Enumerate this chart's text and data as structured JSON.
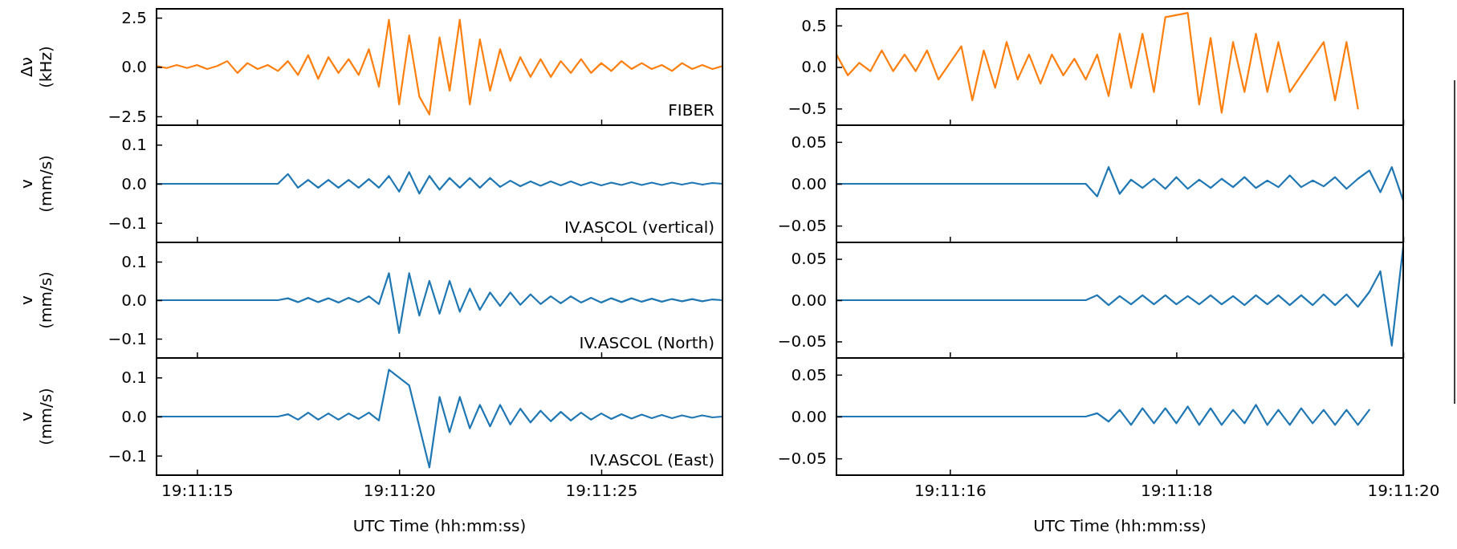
{
  "chart_data": [
    {
      "type": "line",
      "ylabel": "Δν (kHz)",
      "annotations": [
        "FIBER"
      ],
      "tick_labels": "y",
      "grid": false,
      "xlim": [
        19.187222,
        19.191111
      ],
      "xticks": [
        {
          "value": 19.1875,
          "label": null
        },
        {
          "value": 19.188889,
          "label": null
        },
        {
          "value": 19.190278,
          "label": null
        }
      ],
      "ylim": [
        -2.95,
        2.95
      ],
      "yticks": [
        {
          "value": 2.5,
          "label": "2.5"
        },
        {
          "value": 0,
          "label": "0.0"
        },
        {
          "value": -2.5,
          "label": "−2.5"
        }
      ],
      "x": [
        19.187222,
        19.187292,
        19.187361,
        19.187431,
        19.1875,
        19.187569,
        19.187639,
        19.187708,
        19.187778,
        19.187847,
        19.187917,
        19.187986,
        19.188056,
        19.188125,
        19.188194,
        19.188264,
        19.188333,
        19.188403,
        19.188472,
        19.188542,
        19.188611,
        19.188681,
        19.18875,
        19.188819,
        19.188889,
        19.188958,
        19.189028,
        19.189097,
        19.189167,
        19.189236,
        19.189306,
        19.189375,
        19.189444,
        19.189514,
        19.189583,
        19.189653,
        19.189722,
        19.189792,
        19.189861,
        19.189931,
        19.19,
        19.190069,
        19.190139,
        19.190208,
        19.190278,
        19.190347,
        19.190417,
        19.190486,
        19.190556,
        19.190625,
        19.190694,
        19.190764,
        19.190833,
        19.190903,
        19.190972,
        19.191042,
        19.191111
      ],
      "series": [
        {
          "color": "#ff7f0e",
          "values": [
            0.05,
            -0.05,
            0.1,
            -0.05,
            0.1,
            -0.1,
            0.05,
            0.3,
            -0.3,
            0.2,
            -0.1,
            0.1,
            -0.2,
            0.3,
            -0.4,
            0.6,
            -0.6,
            0.5,
            -0.3,
            0.4,
            -0.4,
            0.9,
            -1.0,
            2.4,
            -1.9,
            1.6,
            -1.5,
            -2.4,
            1.5,
            -1.2,
            2.4,
            -1.9,
            1.4,
            -1.2,
            0.9,
            -0.7,
            0.5,
            -0.5,
            0.4,
            -0.5,
            0.3,
            -0.3,
            0.4,
            -0.3,
            0.2,
            -0.2,
            0.3,
            -0.1,
            0.2,
            -0.1,
            0.1,
            -0.2,
            0.2,
            -0.1,
            0.1,
            -0.1,
            0.05
          ]
        }
      ]
    },
    {
      "type": "line",
      "tick_labels": "y",
      "grid": false,
      "xlim": [
        19.1875,
        19.188889
      ],
      "xticks": [
        {
          "value": 19.187778,
          "label": null
        },
        {
          "value": 19.188333,
          "label": null
        },
        {
          "value": 19.188889,
          "label": null
        }
      ],
      "ylim": [
        -0.7,
        0.7
      ],
      "yticks": [
        {
          "value": 0.5,
          "label": "0.5"
        },
        {
          "value": 0,
          "label": "0.0"
        },
        {
          "value": -0.5,
          "label": "−0.5"
        }
      ],
      "x": [
        19.1875,
        19.187528,
        19.187556,
        19.187583,
        19.187611,
        19.187639,
        19.187667,
        19.187694,
        19.187722,
        19.18775,
        19.187778,
        19.187806,
        19.187833,
        19.187861,
        19.187889,
        19.187917,
        19.187944,
        19.187972,
        19.188,
        19.188028,
        19.188056,
        19.188083,
        19.188111,
        19.188139,
        19.188167,
        19.188194,
        19.188222,
        19.18825,
        19.188278,
        19.188306,
        19.188361,
        19.188389,
        19.188417,
        19.188444,
        19.188472,
        19.1885,
        19.188528,
        19.188556,
        19.188583,
        19.188611,
        19.188694,
        19.188722,
        19.18875,
        19.188778
      ],
      "series": [
        {
          "color": "#ff7f0e",
          "values": [
            0.15,
            -0.1,
            0.05,
            -0.05,
            0.2,
            -0.05,
            0.15,
            -0.05,
            0.2,
            -0.15,
            0.05,
            0.25,
            -0.4,
            0.2,
            -0.25,
            0.3,
            -0.15,
            0.15,
            -0.2,
            0.15,
            -0.1,
            0.1,
            -0.15,
            0.15,
            -0.35,
            0.4,
            -0.25,
            0.4,
            -0.3,
            0.6,
            0.65,
            -0.45,
            0.35,
            -0.55,
            0.3,
            -0.3,
            0.4,
            -0.3,
            0.3,
            -0.3,
            0.3,
            -0.4,
            0.3,
            -0.5
          ]
        }
      ]
    },
    {
      "type": "line",
      "ylabel": "v (mm/s)",
      "annotations": [
        "IV.ASCOL (vertical)"
      ],
      "tick_labels": "y",
      "grid": false,
      "xlim": [
        19.187222,
        19.191111
      ],
      "xticks": [
        {
          "value": 19.1875,
          "label": null
        },
        {
          "value": 19.188889,
          "label": null
        },
        {
          "value": 19.190278,
          "label": null
        }
      ],
      "ylim": [
        -0.15,
        0.15
      ],
      "yticks": [
        {
          "value": 0.1,
          "label": "0.1"
        },
        {
          "value": 0,
          "label": "0.0"
        },
        {
          "value": -0.1,
          "label": "−0.1"
        }
      ],
      "x": [
        19.187222,
        19.187292,
        19.187361,
        19.187431,
        19.1875,
        19.187569,
        19.187639,
        19.187708,
        19.187778,
        19.187847,
        19.187917,
        19.187986,
        19.188056,
        19.188125,
        19.188194,
        19.188264,
        19.188333,
        19.188403,
        19.188472,
        19.188542,
        19.188611,
        19.188681,
        19.18875,
        19.188819,
        19.188889,
        19.188958,
        19.189028,
        19.189097,
        19.189167,
        19.189236,
        19.189306,
        19.189375,
        19.189444,
        19.189514,
        19.189583,
        19.189653,
        19.189722,
        19.189792,
        19.189861,
        19.189931,
        19.19,
        19.190069,
        19.190139,
        19.190208,
        19.190278,
        19.190347,
        19.190417,
        19.190486,
        19.190556,
        19.190625,
        19.190694,
        19.190764,
        19.190833,
        19.190903,
        19.190972,
        19.191042,
        19.191111
      ],
      "series": [
        {
          "color": "#1f77b4",
          "values": [
            0,
            0,
            0,
            0,
            0,
            0,
            0,
            0,
            0,
            0,
            0,
            0,
            0,
            0.025,
            -0.01,
            0.01,
            -0.01,
            0.01,
            -0.01,
            0.01,
            -0.01,
            0.012,
            -0.01,
            0.02,
            -0.02,
            0.03,
            -0.025,
            0.02,
            -0.015,
            0.015,
            -0.01,
            0.015,
            -0.01,
            0.015,
            -0.008,
            0.008,
            -0.006,
            0.006,
            -0.005,
            0.006,
            -0.004,
            0.006,
            -0.004,
            0.004,
            -0.004,
            0.003,
            -0.003,
            0.004,
            -0.003,
            0.003,
            -0.003,
            0.003,
            -0.002,
            0.003,
            -0.002,
            0.002,
            0
          ]
        }
      ]
    },
    {
      "type": "line",
      "tick_labels": "y",
      "grid": false,
      "xlim": [
        19.1875,
        19.188889
      ],
      "xticks": [
        {
          "value": 19.187778,
          "label": null
        },
        {
          "value": 19.188333,
          "label": null
        },
        {
          "value": 19.188889,
          "label": null
        }
      ],
      "ylim": [
        -0.07,
        0.07
      ],
      "yticks": [
        {
          "value": 0.05,
          "label": "0.05"
        },
        {
          "value": 0,
          "label": "0.00"
        },
        {
          "value": -0.05,
          "label": "−0.05"
        }
      ],
      "x": [
        19.1875,
        19.187528,
        19.187556,
        19.187583,
        19.187611,
        19.187639,
        19.187667,
        19.187694,
        19.187722,
        19.18775,
        19.187778,
        19.187806,
        19.187833,
        19.187861,
        19.187889,
        19.187917,
        19.187944,
        19.187972,
        19.188,
        19.188028,
        19.188056,
        19.188083,
        19.188111,
        19.188139,
        19.188167,
        19.188194,
        19.188222,
        19.18825,
        19.188278,
        19.188306,
        19.188333,
        19.188361,
        19.188389,
        19.188417,
        19.188444,
        19.188472,
        19.1885,
        19.188528,
        19.188556,
        19.188583,
        19.188611,
        19.188639,
        19.188667,
        19.188694,
        19.188722,
        19.18875,
        19.188778,
        19.188806,
        19.188833,
        19.188861,
        19.188889
      ],
      "series": [
        {
          "color": "#1f77b4",
          "values": [
            0,
            0,
            0,
            0,
            0,
            0,
            0,
            0,
            0,
            0,
            0,
            0,
            0,
            0,
            0,
            0,
            0,
            0,
            0,
            0,
            0,
            0,
            0,
            -0.015,
            0.02,
            -0.012,
            0.005,
            -0.005,
            0.006,
            -0.006,
            0.008,
            -0.006,
            0.005,
            -0.005,
            0.006,
            -0.004,
            0.008,
            -0.005,
            0.004,
            -0.004,
            0.01,
            -0.004,
            0.004,
            -0.003,
            0.008,
            -0.006,
            0.006,
            0.016,
            -0.01,
            0.02,
            -0.02
          ]
        }
      ]
    },
    {
      "type": "line",
      "ylabel": "v (mm/s)",
      "annotations": [
        "IV.ASCOL (North)"
      ],
      "tick_labels": "y",
      "grid": false,
      "xlim": [
        19.187222,
        19.191111
      ],
      "xticks": [
        {
          "value": 19.1875,
          "label": null
        },
        {
          "value": 19.188889,
          "label": null
        },
        {
          "value": 19.190278,
          "label": null
        }
      ],
      "ylim": [
        -0.15,
        0.15
      ],
      "yticks": [
        {
          "value": 0.1,
          "label": "0.1"
        },
        {
          "value": 0,
          "label": "0.0"
        },
        {
          "value": -0.1,
          "label": "−0.1"
        }
      ],
      "x": [
        19.187222,
        19.187292,
        19.187361,
        19.187431,
        19.1875,
        19.187569,
        19.187639,
        19.187708,
        19.187778,
        19.187847,
        19.187917,
        19.187986,
        19.188056,
        19.188125,
        19.188194,
        19.188264,
        19.188333,
        19.188403,
        19.188472,
        19.188542,
        19.188611,
        19.188681,
        19.18875,
        19.188819,
        19.188889,
        19.188958,
        19.189028,
        19.189097,
        19.189167,
        19.189236,
        19.189306,
        19.189375,
        19.189444,
        19.189514,
        19.189583,
        19.189653,
        19.189722,
        19.189792,
        19.189861,
        19.189931,
        19.19,
        19.190069,
        19.190139,
        19.190208,
        19.190278,
        19.190347,
        19.190417,
        19.190486,
        19.190556,
        19.190625,
        19.190694,
        19.190764,
        19.190833,
        19.190903,
        19.190972,
        19.191042,
        19.191111
      ],
      "series": [
        {
          "color": "#1f77b4",
          "values": [
            0,
            0,
            0,
            0,
            0,
            0,
            0,
            0,
            0,
            0,
            0,
            0,
            0,
            0.005,
            -0.005,
            0.006,
            -0.005,
            0.005,
            -0.006,
            0.006,
            -0.005,
            0.01,
            -0.01,
            0.07,
            -0.085,
            0.07,
            -0.04,
            0.05,
            -0.035,
            0.05,
            -0.03,
            0.03,
            -0.025,
            0.02,
            -0.015,
            0.02,
            -0.012,
            0.015,
            -0.01,
            0.01,
            -0.008,
            0.01,
            -0.006,
            0.006,
            -0.006,
            0.005,
            -0.005,
            0.005,
            -0.004,
            0.004,
            -0.004,
            0.003,
            -0.003,
            0.003,
            -0.003,
            0.002,
            0
          ]
        }
      ]
    },
    {
      "type": "line",
      "tick_labels": "y",
      "grid": false,
      "xlim": [
        19.1875,
        19.188889
      ],
      "xticks": [
        {
          "value": 19.187778,
          "label": null
        },
        {
          "value": 19.188333,
          "label": null
        },
        {
          "value": 19.188889,
          "label": null
        }
      ],
      "ylim": [
        -0.07,
        0.07
      ],
      "yticks": [
        {
          "value": 0.05,
          "label": "0.05"
        },
        {
          "value": 0,
          "label": "0.00"
        },
        {
          "value": -0.05,
          "label": "−0.05"
        }
      ],
      "x": [
        19.1875,
        19.187528,
        19.187556,
        19.187583,
        19.187611,
        19.187639,
        19.187667,
        19.187694,
        19.187722,
        19.18775,
        19.187778,
        19.187806,
        19.187833,
        19.187861,
        19.187889,
        19.187917,
        19.187944,
        19.187972,
        19.188,
        19.188028,
        19.188056,
        19.188083,
        19.188111,
        19.188139,
        19.188167,
        19.188194,
        19.188222,
        19.18825,
        19.188278,
        19.188306,
        19.188333,
        19.188361,
        19.188389,
        19.188417,
        19.188444,
        19.188472,
        19.1885,
        19.188528,
        19.188556,
        19.188583,
        19.188611,
        19.188639,
        19.188667,
        19.188694,
        19.188722,
        19.18875,
        19.188778,
        19.188806,
        19.188833,
        19.188861,
        19.188889
      ],
      "series": [
        {
          "color": "#1f77b4",
          "values": [
            0,
            0,
            0,
            0,
            0,
            0,
            0,
            0,
            0,
            0,
            0,
            0,
            0,
            0,
            0,
            0,
            0,
            0,
            0,
            0,
            0,
            0,
            0,
            0.006,
            -0.006,
            0.005,
            -0.005,
            0.006,
            -0.005,
            0.006,
            -0.005,
            0.005,
            -0.005,
            0.006,
            -0.005,
            0.005,
            -0.006,
            0.006,
            -0.005,
            0.006,
            -0.006,
            0.006,
            -0.006,
            0.007,
            -0.006,
            0.007,
            -0.008,
            0.01,
            0.035,
            -0.055,
            0.065
          ]
        }
      ]
    },
    {
      "type": "line",
      "ylabel": "v (mm/s)",
      "xlabel": "UTC Time (hh:mm:ss)",
      "annotations": [
        "IV.ASCOL (East)"
      ],
      "grid": false,
      "xlim": [
        19.187222,
        19.191111
      ],
      "xticks": [
        {
          "value": 19.1875,
          "label": "19:11:15"
        },
        {
          "value": 19.188889,
          "label": "19:11:20"
        },
        {
          "value": 19.190278,
          "label": "19:11:25"
        }
      ],
      "ylim": [
        -0.15,
        0.15
      ],
      "yticks": [
        {
          "value": 0.1,
          "label": "0.1"
        },
        {
          "value": 0,
          "label": "0.0"
        },
        {
          "value": -0.1,
          "label": "−0.1"
        }
      ],
      "x": [
        19.187222,
        19.187292,
        19.187361,
        19.187431,
        19.1875,
        19.187569,
        19.187639,
        19.187708,
        19.187778,
        19.187847,
        19.187917,
        19.187986,
        19.188056,
        19.188125,
        19.188194,
        19.188264,
        19.188333,
        19.188403,
        19.188472,
        19.188542,
        19.188611,
        19.188681,
        19.18875,
        19.188819,
        19.188958,
        19.189097,
        19.189167,
        19.189236,
        19.189306,
        19.189375,
        19.189444,
        19.189514,
        19.189583,
        19.189653,
        19.189722,
        19.189792,
        19.189861,
        19.189931,
        19.19,
        19.190069,
        19.190139,
        19.190208,
        19.190278,
        19.190347,
        19.190417,
        19.190486,
        19.190556,
        19.190625,
        19.190694,
        19.190764,
        19.190833,
        19.190903,
        19.190972,
        19.191042,
        19.191111
      ],
      "series": [
        {
          "color": "#1f77b4",
          "values": [
            0,
            0,
            0,
            0,
            0,
            0,
            0,
            0,
            0,
            0,
            0,
            0,
            0,
            0.006,
            -0.008,
            0.01,
            -0.008,
            0.008,
            -0.008,
            0.008,
            -0.006,
            0.01,
            -0.01,
            0.12,
            0.08,
            -0.13,
            0.05,
            -0.04,
            0.05,
            -0.03,
            0.03,
            -0.025,
            0.03,
            -0.02,
            0.02,
            -0.015,
            0.015,
            -0.012,
            0.012,
            -0.01,
            0.01,
            -0.008,
            0.008,
            -0.006,
            0.006,
            -0.005,
            0.005,
            -0.004,
            0.004,
            -0.004,
            0.003,
            -0.003,
            0.003,
            -0.002,
            0
          ]
        }
      ]
    },
    {
      "type": "line",
      "xlabel": "UTC Time (hh:mm:ss)",
      "grid": false,
      "xlim": [
        19.1875,
        19.188889
      ],
      "xticks": [
        {
          "value": 19.187778,
          "label": "19:11:16"
        },
        {
          "value": 19.188333,
          "label": "19:11:18"
        },
        {
          "value": 19.188889,
          "label": "19:11:20"
        }
      ],
      "ylim": [
        -0.07,
        0.07
      ],
      "yticks": [
        {
          "value": 0.05,
          "label": "0.05"
        },
        {
          "value": 0,
          "label": "0.00"
        },
        {
          "value": -0.05,
          "label": "−0.05"
        }
      ],
      "x": [
        19.1875,
        19.187528,
        19.187556,
        19.187583,
        19.187611,
        19.187639,
        19.187667,
        19.187694,
        19.187722,
        19.18775,
        19.187778,
        19.187806,
        19.187833,
        19.187861,
        19.187889,
        19.187917,
        19.187944,
        19.187972,
        19.188,
        19.188028,
        19.188056,
        19.188083,
        19.188111,
        19.188139,
        19.188167,
        19.188194,
        19.188222,
        19.18825,
        19.188278,
        19.188306,
        19.188333,
        19.188361,
        19.188389,
        19.188417,
        19.188444,
        19.188472,
        19.1885,
        19.188528,
        19.188556,
        19.188583,
        19.188611,
        19.188639,
        19.188667,
        19.188694,
        19.188722,
        19.18875,
        19.188778,
        19.188806
      ],
      "series": [
        {
          "color": "#1f77b4",
          "values": [
            0,
            0,
            0,
            0,
            0,
            0,
            0,
            0,
            0,
            0,
            0,
            0,
            0,
            0,
            0,
            0,
            0,
            0,
            0,
            0,
            0,
            0,
            0,
            0.004,
            -0.006,
            0.008,
            -0.01,
            0.01,
            -0.008,
            0.01,
            -0.008,
            0.012,
            -0.01,
            0.01,
            -0.01,
            0.008,
            -0.008,
            0.014,
            -0.01,
            0.008,
            -0.01,
            0.01,
            -0.008,
            0.008,
            -0.01,
            0.008,
            -0.01,
            0.008
          ]
        }
      ]
    }
  ]
}
